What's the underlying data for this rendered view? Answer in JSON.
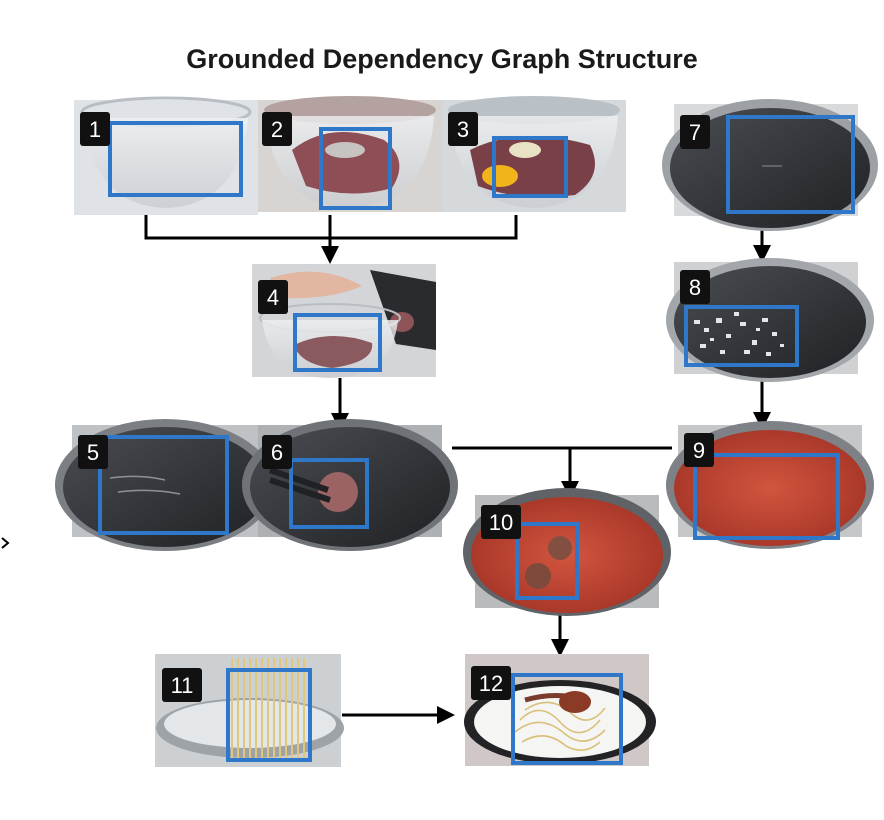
{
  "title": "Grounded Dependency Graph Structure",
  "colors": {
    "box": "#2f78c9",
    "arrow": "#000000",
    "badge": "#111111"
  },
  "steps": [
    {
      "id": "1",
      "scene": "glass-bowl-empty"
    },
    {
      "id": "2",
      "scene": "glass-bowl-ground-meat"
    },
    {
      "id": "3",
      "scene": "glass-bowl-egg-meat"
    },
    {
      "id": "4",
      "scene": "hand-mixing-meat-bowl"
    },
    {
      "id": "5",
      "scene": "pan-oil"
    },
    {
      "id": "6",
      "scene": "pan-meatball-tongs"
    },
    {
      "id": "7",
      "scene": "empty-pan"
    },
    {
      "id": "8",
      "scene": "pan-chopped-onion"
    },
    {
      "id": "9",
      "scene": "pan-tomato-sauce"
    },
    {
      "id": "10",
      "scene": "pan-sauce-meatballs"
    },
    {
      "id": "11",
      "scene": "spaghetti-pot"
    },
    {
      "id": "12",
      "scene": "plated-spaghetti-meatball"
    }
  ],
  "edges": [
    {
      "from": [
        "1",
        "2",
        "3"
      ],
      "to": "4"
    },
    {
      "from": [
        "4"
      ],
      "to": "6"
    },
    {
      "from": [
        "7"
      ],
      "to": "8"
    },
    {
      "from": [
        "8"
      ],
      "to": "9"
    },
    {
      "from": [
        "6",
        "9"
      ],
      "to": "10"
    },
    {
      "from": [
        "10"
      ],
      "to": "12"
    },
    {
      "from": [
        "11"
      ],
      "to": "12"
    }
  ]
}
